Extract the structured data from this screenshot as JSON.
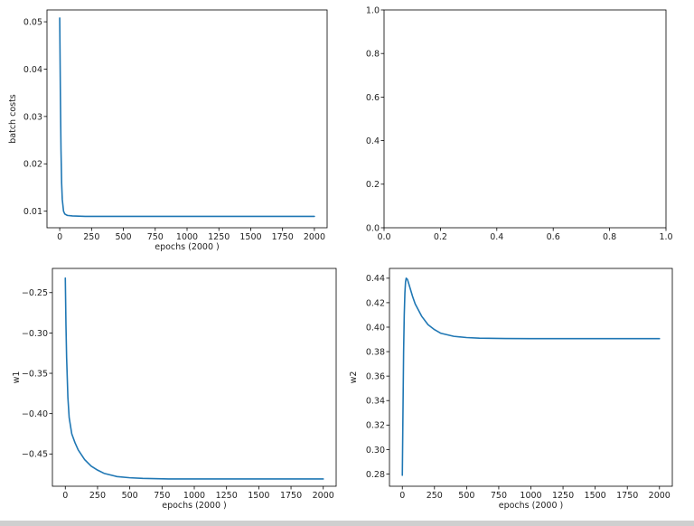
{
  "colors": {
    "line": "#1f77b4",
    "background": "#ffffff"
  },
  "chart_data": [
    {
      "type": "line",
      "xlabel": "epochs (2000 )",
      "ylabel": "batch costs",
      "xlim": [
        -100,
        2100
      ],
      "ylim": [
        0.0065,
        0.0525
      ],
      "xticks": [
        0,
        250,
        500,
        750,
        1000,
        1250,
        1500,
        1750,
        2000
      ],
      "xtick_labels": [
        "0",
        "250",
        "500",
        "750",
        "1000",
        "1250",
        "1500",
        "1750",
        "2000"
      ],
      "yticks": [
        0.01,
        0.02,
        0.03,
        0.04,
        0.05
      ],
      "ytick_labels": [
        "0.01",
        "0.02",
        "0.03",
        "0.04",
        "0.05"
      ],
      "grid": false,
      "series": [
        {
          "x": [
            0,
            5,
            10,
            15,
            20,
            30,
            40,
            60,
            100,
            200,
            400,
            700,
            1000,
            1500,
            2000
          ],
          "y": [
            0.0508,
            0.035,
            0.023,
            0.016,
            0.0125,
            0.01,
            0.0094,
            0.0091,
            0.009,
            0.0089,
            0.0089,
            0.0089,
            0.0089,
            0.0089,
            0.0089
          ]
        }
      ]
    },
    {
      "type": "line",
      "xlabel": "",
      "ylabel": "",
      "xlim": [
        0,
        1
      ],
      "ylim": [
        0,
        1
      ],
      "xticks": [
        0,
        0.2,
        0.4,
        0.6,
        0.8,
        1
      ],
      "xtick_labels": [
        "0.0",
        "0.2",
        "0.4",
        "0.6",
        "0.8",
        "1.0"
      ],
      "yticks": [
        0,
        0.2,
        0.4,
        0.6,
        0.8,
        1
      ],
      "ytick_labels": [
        "0.0",
        "0.2",
        "0.4",
        "0.6",
        "0.8",
        "1.0"
      ],
      "grid": false,
      "series": []
    },
    {
      "type": "line",
      "xlabel": "epochs (2000 )",
      "ylabel": "w1",
      "xlim": [
        -100,
        2100
      ],
      "ylim": [
        -0.49,
        -0.22
      ],
      "xticks": [
        0,
        250,
        500,
        750,
        1000,
        1250,
        1500,
        1750,
        2000
      ],
      "xtick_labels": [
        "0",
        "250",
        "500",
        "750",
        "1000",
        "1250",
        "1500",
        "1750",
        "2000"
      ],
      "yticks": [
        -0.45,
        -0.4,
        -0.35,
        -0.3,
        -0.25
      ],
      "ytick_labels": [
        "−0.45",
        "−0.40",
        "−0.35",
        "−0.30",
        "−0.25"
      ],
      "grid": false,
      "series": [
        {
          "x": [
            0,
            5,
            10,
            20,
            30,
            50,
            75,
            100,
            150,
            200,
            250,
            300,
            400,
            500,
            600,
            800,
            1000,
            1500,
            2000
          ],
          "y": [
            -0.232,
            -0.29,
            -0.33,
            -0.38,
            -0.405,
            -0.425,
            -0.436,
            -0.445,
            -0.457,
            -0.465,
            -0.47,
            -0.474,
            -0.478,
            -0.4795,
            -0.4803,
            -0.481,
            -0.481,
            -0.481,
            -0.481
          ]
        }
      ]
    },
    {
      "type": "line",
      "xlabel": "epochs (2000 )",
      "ylabel": "w2",
      "xlim": [
        -100,
        2100
      ],
      "ylim": [
        0.27,
        0.448
      ],
      "xticks": [
        0,
        250,
        500,
        750,
        1000,
        1250,
        1500,
        1750,
        2000
      ],
      "xtick_labels": [
        "0",
        "250",
        "500",
        "750",
        "1000",
        "1250",
        "1500",
        "1750",
        "2000"
      ],
      "yticks": [
        0.28,
        0.3,
        0.32,
        0.34,
        0.36,
        0.38,
        0.4,
        0.42,
        0.44
      ],
      "ytick_labels": [
        "0.28",
        "0.30",
        "0.32",
        "0.34",
        "0.36",
        "0.38",
        "0.40",
        "0.42",
        "0.44"
      ],
      "grid": false,
      "series": [
        {
          "x": [
            0,
            5,
            10,
            15,
            20,
            25,
            30,
            40,
            60,
            80,
            100,
            150,
            200,
            250,
            300,
            400,
            500,
            600,
            800,
            1000,
            1500,
            2000
          ],
          "y": [
            0.279,
            0.33,
            0.38,
            0.41,
            0.428,
            0.437,
            0.44,
            0.439,
            0.432,
            0.425,
            0.419,
            0.409,
            0.402,
            0.398,
            0.395,
            0.3925,
            0.3915,
            0.391,
            0.3907,
            0.3906,
            0.3906,
            0.3906
          ]
        }
      ]
    }
  ]
}
